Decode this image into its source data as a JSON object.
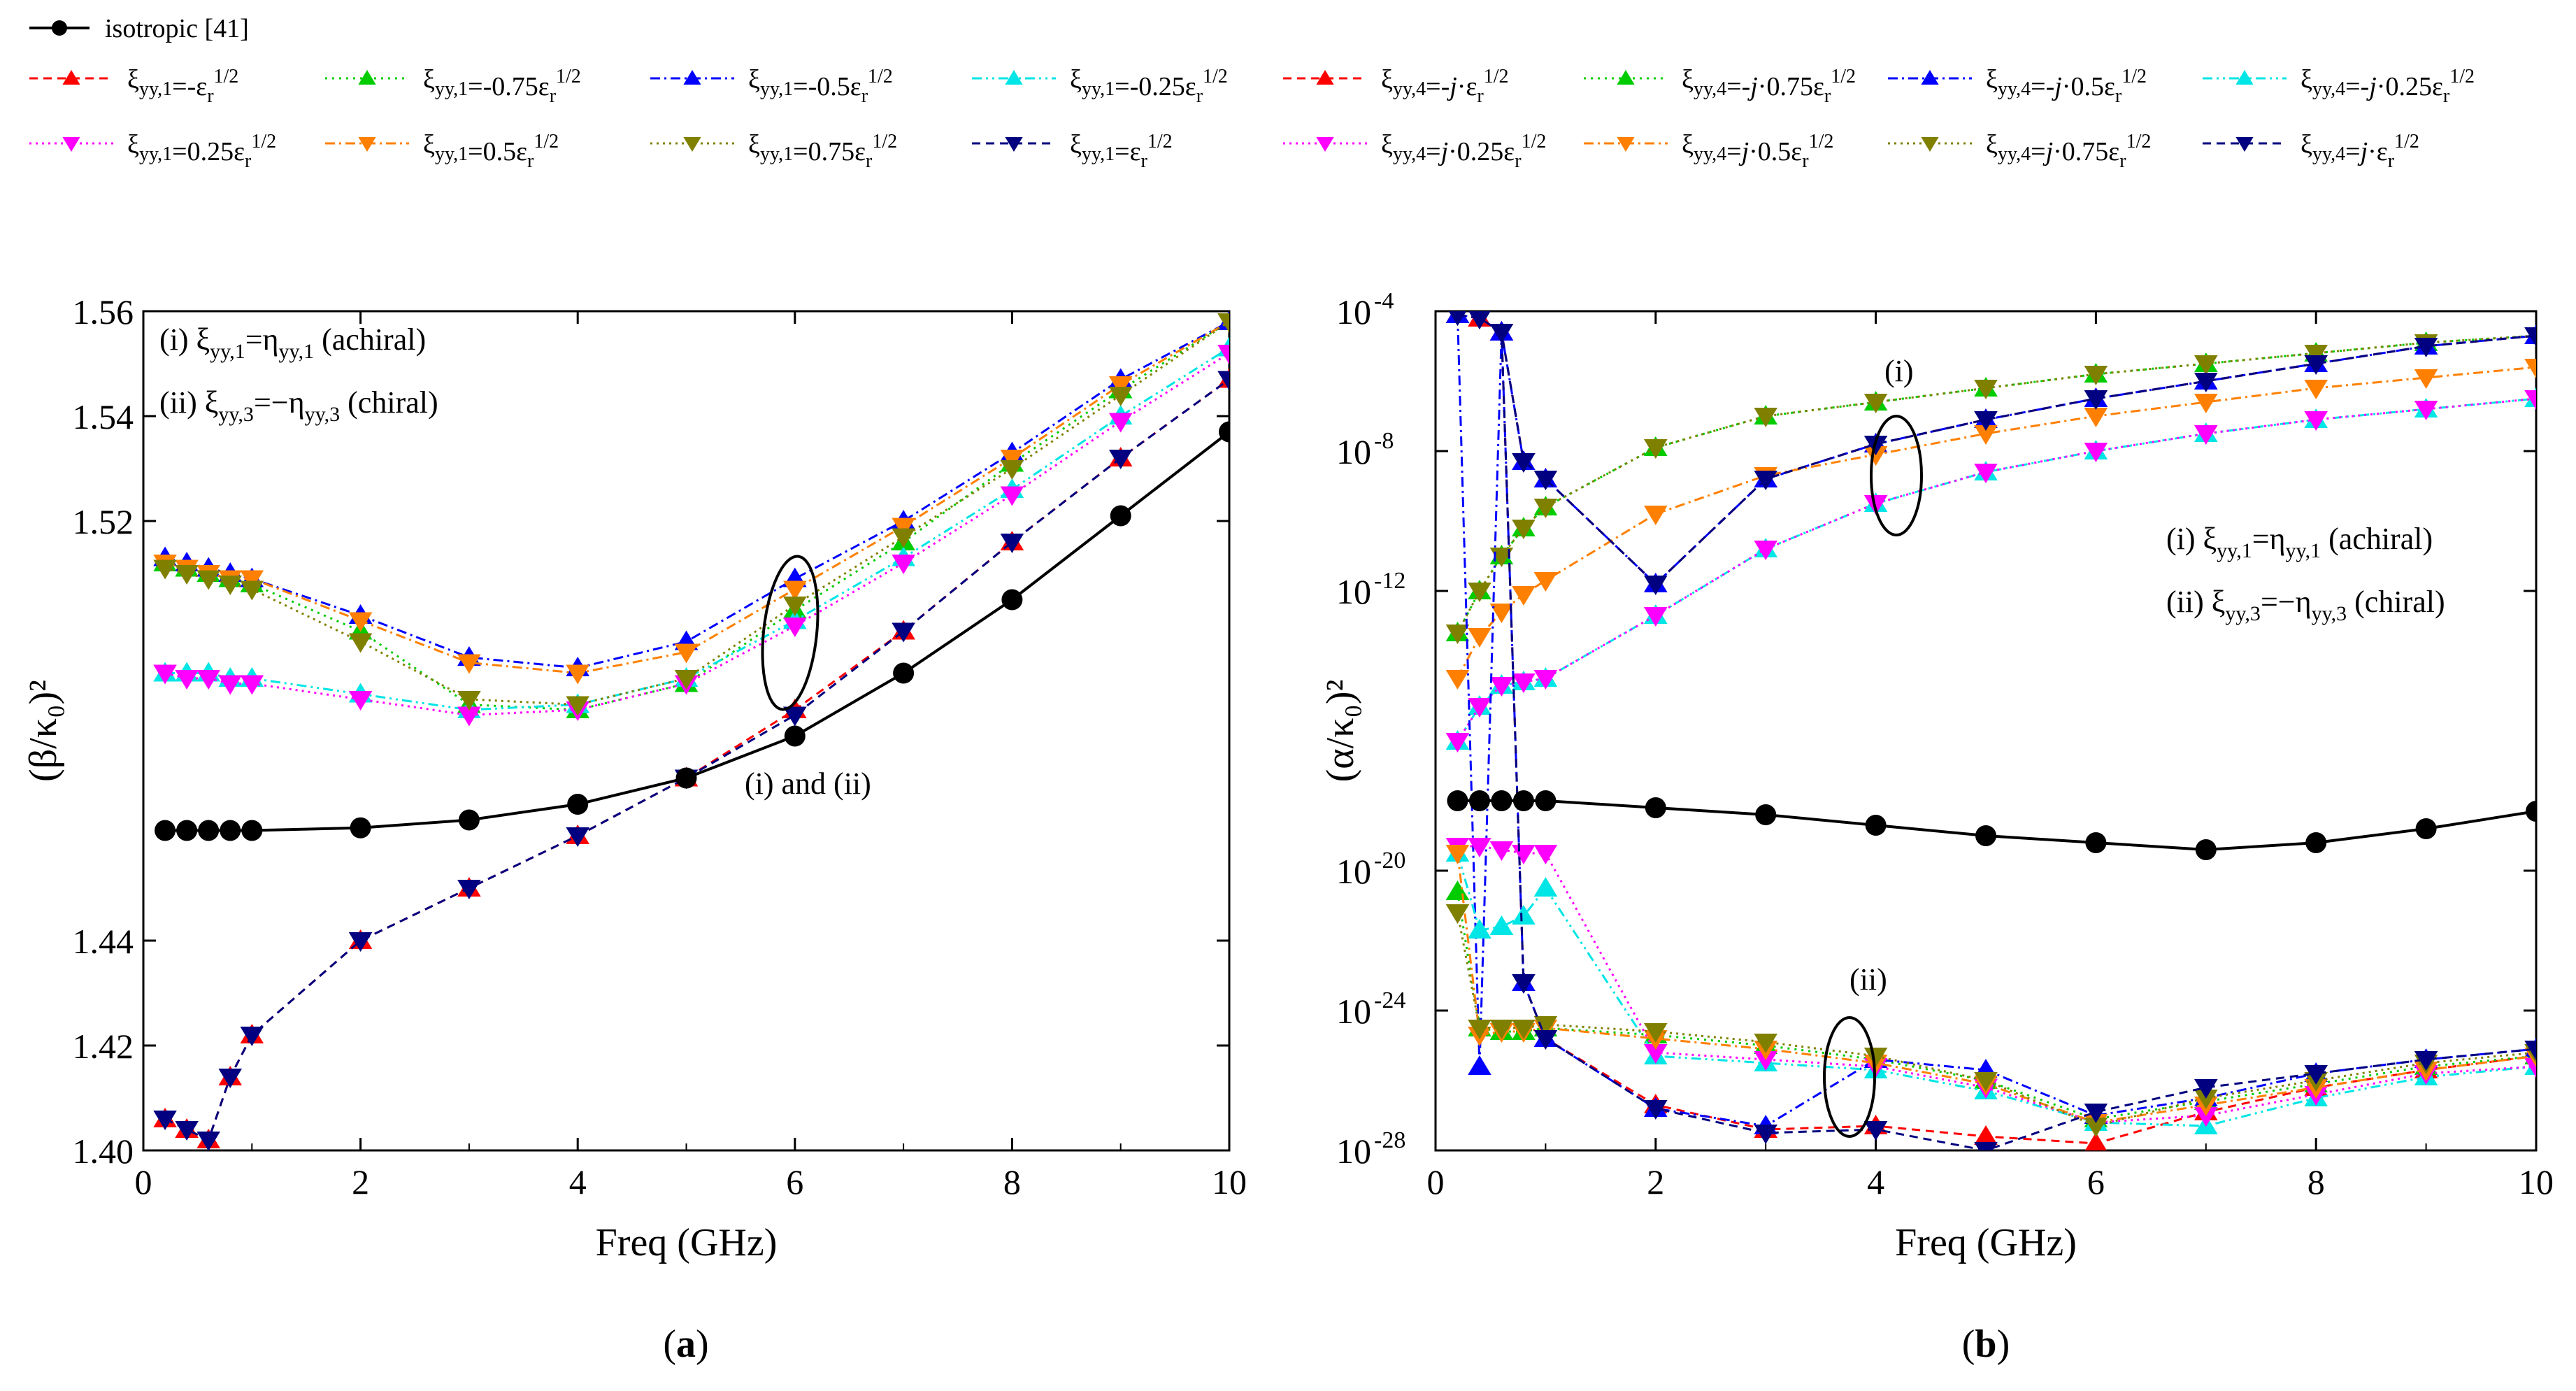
{
  "legend": {
    "isotropic": "isotropic [41]",
    "achiral_group": [
      {
        "prefix": "ξ",
        "sub": "yy,1",
        "eq": "=-ε",
        "sub2": "r",
        "sup": "1/2",
        "color": "#ff0000",
        "marker": "up",
        "dash": "12,8"
      },
      {
        "prefix": "ξ",
        "sub": "yy,1",
        "eq": "=-0.75ε",
        "sub2": "r",
        "sup": "1/2",
        "color": "#00cc00",
        "marker": "up",
        "dash": "3,7"
      },
      {
        "prefix": "ξ",
        "sub": "yy,1",
        "eq": "=-0.5ε",
        "sub2": "r",
        "sup": "1/2",
        "color": "#0000ff",
        "marker": "up",
        "dash": "14,6,3,6"
      },
      {
        "prefix": "ξ",
        "sub": "yy,1",
        "eq": "=-0.25ε",
        "sub2": "r",
        "sup": "1/2",
        "color": "#00e5e5",
        "marker": "up",
        "dash": "14,6,3,6,3,6"
      },
      {
        "prefix": "ξ",
        "sub": "yy,1",
        "eq": "=0.25ε",
        "sub2": "r",
        "sup": "1/2",
        "color": "#ff00ff",
        "marker": "down",
        "dash": "3,6"
      },
      {
        "prefix": "ξ",
        "sub": "yy,1",
        "eq": "=0.5ε",
        "sub2": "r",
        "sup": "1/2",
        "color": "#ff8000",
        "marker": "down",
        "dash": "14,6,3,6"
      },
      {
        "prefix": "ξ",
        "sub": "yy,1",
        "eq": "=0.75ε",
        "sub2": "r",
        "sup": "1/2",
        "color": "#808000",
        "marker": "down",
        "dash": "3,6"
      },
      {
        "prefix": "ξ",
        "sub": "yy,1",
        "eq": "=ε",
        "sub2": "r",
        "sup": "1/2",
        "color": "#000080",
        "marker": "down",
        "dash": "12,8"
      }
    ],
    "chiral_group": [
      {
        "prefix": "ξ",
        "sub": "yy,4",
        "eq": "=-j·ε",
        "sub2": "r",
        "sup": "1/2",
        "color": "#ff0000",
        "marker": "up",
        "dash": "12,8"
      },
      {
        "prefix": "ξ",
        "sub": "yy,4",
        "eq": "=-j·0.75ε",
        "sub2": "r",
        "sup": "1/2",
        "color": "#00cc00",
        "marker": "up",
        "dash": "3,7"
      },
      {
        "prefix": "ξ",
        "sub": "yy,4",
        "eq": "=-j·0.5ε",
        "sub2": "r",
        "sup": "1/2",
        "color": "#0000ff",
        "marker": "up",
        "dash": "14,6,3,6"
      },
      {
        "prefix": "ξ",
        "sub": "yy,4",
        "eq": "=-j·0.25ε",
        "sub2": "r",
        "sup": "1/2",
        "color": "#00e5e5",
        "marker": "up",
        "dash": "14,6,3,6,3,6"
      },
      {
        "prefix": "ξ",
        "sub": "yy,4",
        "eq": "=j·0.25ε",
        "sub2": "r",
        "sup": "1/2",
        "color": "#ff00ff",
        "marker": "down",
        "dash": "3,6"
      },
      {
        "prefix": "ξ",
        "sub": "yy,4",
        "eq": "=j·0.5ε",
        "sub2": "r",
        "sup": "1/2",
        "color": "#ff8000",
        "marker": "down",
        "dash": "14,6,3,6"
      },
      {
        "prefix": "ξ",
        "sub": "yy,4",
        "eq": "=j·0.75ε",
        "sub2": "r",
        "sup": "1/2",
        "color": "#808000",
        "marker": "down",
        "dash": "3,6"
      },
      {
        "prefix": "ξ",
        "sub": "yy,4",
        "eq": "=j·ε",
        "sub2": "r",
        "sup": "1/2",
        "color": "#000080",
        "marker": "down",
        "dash": "12,8"
      }
    ]
  },
  "chart_data": [
    {
      "type": "line",
      "panel_label": "(a)",
      "xlabel": "Freq (GHz)",
      "ylabel": "(β/κ₀)²",
      "xlim": [
        0,
        10
      ],
      "ylim": [
        1.4,
        1.56
      ],
      "yscale": "linear",
      "xticks": [
        0,
        2,
        4,
        6,
        8,
        10
      ],
      "yticks": [
        1.4,
        1.42,
        1.44,
        1.52,
        1.54,
        1.56
      ],
      "ytick_labels": [
        "1.40",
        "1.42",
        "1.44",
        "1.52",
        "1.54",
        "1.56"
      ],
      "annotations": [
        "(i) ξyy,1=ηyy,1 (achiral)",
        "(ii) ξyy,3=−ηyy,3 (chiral)",
        "(i) and (ii)"
      ],
      "x": [
        0.2,
        0.4,
        0.6,
        0.8,
        1,
        2,
        3,
        4,
        5,
        6,
        7,
        8,
        9,
        10
      ],
      "series": [
        {
          "name": "isotropic [41]",
          "color": "#000000",
          "marker": "circle",
          "dash": "",
          "values": [
            1.461,
            1.461,
            1.461,
            1.461,
            1.461,
            1.4615,
            1.463,
            1.466,
            1.471,
            1.479,
            1.491,
            1.505,
            1.521,
            1.537
          ]
        },
        {
          "name": "ξyy,1=-εr1/2",
          "color": "#ff0000",
          "marker": "up",
          "dash": "12,8",
          "values": [
            1.406,
            1.404,
            1.402,
            1.414,
            1.422,
            1.44,
            1.45,
            1.46,
            1.471,
            1.484,
            1.499,
            1.516,
            1.532,
            1.547
          ]
        },
        {
          "name": "ξyy,1=-0.75εr1/2",
          "color": "#00cc00",
          "marker": "up",
          "dash": "3,7",
          "values": [
            1.512,
            1.511,
            1.51,
            1.509,
            1.508,
            1.499,
            1.485,
            1.484,
            1.489,
            1.503,
            1.516,
            1.531,
            1.545,
            1.558
          ]
        },
        {
          "name": "ξyy,1=-0.5εr1/2",
          "color": "#0000ff",
          "marker": "up",
          "dash": "14,6,3,6",
          "values": [
            1.513,
            1.512,
            1.511,
            1.51,
            1.509,
            1.502,
            1.494,
            1.492,
            1.497,
            1.509,
            1.52,
            1.533,
            1.547,
            1.558
          ]
        },
        {
          "name": "ξyy,1=-0.25εr1/2",
          "color": "#00e5e5",
          "marker": "up",
          "dash": "14,6,3,6,3,6",
          "values": [
            1.491,
            1.491,
            1.491,
            1.49,
            1.49,
            1.487,
            1.484,
            1.485,
            1.49,
            1.501,
            1.513,
            1.526,
            1.54,
            1.553
          ]
        },
        {
          "name": "ξyy,1=0.25εr1/2",
          "color": "#ff00ff",
          "marker": "down",
          "dash": "3,6",
          "values": [
            1.491,
            1.49,
            1.49,
            1.489,
            1.489,
            1.486,
            1.483,
            1.484,
            1.489,
            1.5,
            1.512,
            1.525,
            1.539,
            1.552
          ]
        },
        {
          "name": "ξyy,1=0.5εr1/2",
          "color": "#ff8000",
          "marker": "down",
          "dash": "14,6,3,6",
          "values": [
            1.512,
            1.511,
            1.51,
            1.509,
            1.509,
            1.501,
            1.493,
            1.491,
            1.495,
            1.507,
            1.519,
            1.532,
            1.546,
            1.558
          ]
        },
        {
          "name": "ξyy,1=0.75εr1/2",
          "color": "#808000",
          "marker": "down",
          "dash": "3,6",
          "values": [
            1.511,
            1.51,
            1.509,
            1.508,
            1.507,
            1.497,
            1.486,
            1.485,
            1.49,
            1.504,
            1.517,
            1.53,
            1.544,
            1.558
          ]
        },
        {
          "name": "ξyy,1=εr1/2",
          "color": "#000080",
          "marker": "down",
          "dash": "12,8",
          "values": [
            1.406,
            1.404,
            1.402,
            1.414,
            1.422,
            1.44,
            1.45,
            1.46,
            1.471,
            1.483,
            1.499,
            1.516,
            1.532,
            1.547
          ]
        }
      ]
    },
    {
      "type": "line",
      "panel_label": "(b)",
      "xlabel": "Freq (GHz)",
      "ylabel": "(α/κ₀)²",
      "xlim": [
        0,
        10
      ],
      "ylim": [
        -28,
        -4
      ],
      "yscale": "log10",
      "xticks": [
        0,
        2,
        4,
        6,
        8,
        10
      ],
      "yticks": [
        -28,
        -24,
        -20,
        -12,
        -8,
        -4
      ],
      "ytick_labels": [
        {
          "base": "10",
          "exp": "-28"
        },
        {
          "base": "10",
          "exp": "-24"
        },
        {
          "base": "10",
          "exp": "-20"
        },
        {
          "base": "10",
          "exp": "-12"
        },
        {
          "base": "10",
          "exp": "-8"
        },
        {
          "base": "10",
          "exp": "-4"
        }
      ],
      "annotations": [
        "(i) ξyy,1=ηyy,1 (achiral)",
        "(ii) ξyy,3=−ηyy,3 (chiral)",
        "(i)",
        "(ii)"
      ],
      "x": [
        0.2,
        0.4,
        0.6,
        0.8,
        1,
        2,
        3,
        4,
        5,
        6,
        7,
        8,
        9,
        10
      ],
      "series_log10": [
        {
          "name": "isotropic [41]",
          "color": "#000000",
          "marker": "circle",
          "dash": "",
          "values": [
            -18.0,
            -18.0,
            -18.0,
            -18.0,
            -18.0,
            -18.2,
            -18.4,
            -18.7,
            -19.0,
            -19.2,
            -19.4,
            -19.2,
            -18.8,
            -18.3
          ]
        },
        {
          "name": "achiral ξyy,1=-εr1/2",
          "color": "#ff0000",
          "marker": "up",
          "dash": "12,8",
          "values": [
            -4.1,
            -4.2,
            -4.6,
            -8.3,
            -8.8,
            -11.8,
            -8.8,
            -7.8,
            -7.1,
            -6.5,
            -6.0,
            -5.5,
            -5.0,
            -4.7
          ]
        },
        {
          "name": "achiral ξyy,1=-0.75εr1/2",
          "color": "#00cc00",
          "marker": "up",
          "dash": "3,7",
          "values": [
            -13.2,
            -12.0,
            -11.0,
            -10.2,
            -9.6,
            -7.9,
            -7.0,
            -6.6,
            -6.2,
            -5.8,
            -5.5,
            -5.2,
            -4.9,
            -4.7
          ]
        },
        {
          "name": "achiral ξyy,1=-0.5εr1/2",
          "color": "#0000ff",
          "marker": "up",
          "dash": "14,6,3,6",
          "values": [
            -4.1,
            -4.2,
            -4.6,
            -8.3,
            -8.8,
            -11.8,
            -8.8,
            -7.8,
            -7.1,
            -6.5,
            -6.0,
            -5.5,
            -5.0,
            -4.7
          ]
        },
        {
          "name": "achiral ξyy,1=-0.25εr1/2",
          "color": "#00e5e5",
          "marker": "up",
          "dash": "14,6,3,6,3,6",
          "values": [
            -16.3,
            -15.3,
            -14.7,
            -14.6,
            -14.5,
            -12.7,
            -10.8,
            -9.5,
            -8.6,
            -8.0,
            -7.5,
            -7.1,
            -6.8,
            -6.5
          ]
        },
        {
          "name": "achiral ξyy,1=0.25εr1/2",
          "color": "#ff00ff",
          "marker": "down",
          "dash": "3,6",
          "values": [
            -16.3,
            -15.3,
            -14.7,
            -14.6,
            -14.5,
            -12.7,
            -10.8,
            -9.5,
            -8.6,
            -8.0,
            -7.5,
            -7.1,
            -6.8,
            -6.5
          ]
        },
        {
          "name": "achiral ξyy,1=0.5εr1/2",
          "color": "#ff8000",
          "marker": "down",
          "dash": "14,6,3,6",
          "values": [
            -14.5,
            -13.3,
            -12.6,
            -12.1,
            -11.7,
            -9.8,
            -8.7,
            -8.1,
            -7.5,
            -7.0,
            -6.6,
            -6.2,
            -5.9,
            -5.6
          ]
        },
        {
          "name": "achiral ξyy,1=0.75εr1/2",
          "color": "#808000",
          "marker": "down",
          "dash": "3,6",
          "values": [
            -13.2,
            -12.0,
            -11.0,
            -10.2,
            -9.6,
            -7.9,
            -7.0,
            -6.6,
            -6.2,
            -5.8,
            -5.5,
            -5.2,
            -4.9,
            -4.7
          ]
        },
        {
          "name": "achiral ξyy,1=εr1/2",
          "color": "#000080",
          "marker": "down",
          "dash": "12,8",
          "values": [
            -4.1,
            -4.2,
            -4.6,
            -8.3,
            -8.8,
            -11.8,
            -8.8,
            -7.8,
            -7.1,
            -6.5,
            -6.0,
            -5.5,
            -5.0,
            -4.7
          ]
        },
        {
          "name": "chiral ξyy,4=-j·εr1/2",
          "color": "#ff0000",
          "marker": "up",
          "dash": "12,8",
          "values": [
            -4.1,
            -4.2,
            -4.6,
            -23.2,
            -24.8,
            -26.7,
            -27.4,
            -27.3,
            -27.6,
            -27.8,
            -26.9,
            -26.2,
            -25.7,
            -25.3
          ]
        },
        {
          "name": "chiral ξyy,4=-j·0.75εr1/2",
          "color": "#00cc00",
          "marker": "up",
          "dash": "3,7",
          "values": [
            -20.6,
            -24.5,
            -24.6,
            -24.6,
            -24.5,
            -24.7,
            -25.0,
            -25.4,
            -26.0,
            -27.1,
            -26.6,
            -26.1,
            -25.6,
            -25.3
          ]
        },
        {
          "name": "chiral ξyy,4=-j·0.5εr1/2",
          "color": "#0000ff",
          "marker": "up",
          "dash": "14,6,3,6",
          "values": [
            -4.1,
            -25.6,
            -4.6,
            -23.2,
            -24.8,
            -26.8,
            -27.3,
            -25.4,
            -25.7,
            -27.0,
            -26.5,
            -25.8,
            -25.4,
            -25.1
          ]
        },
        {
          "name": "chiral ξyy,4=-j·0.25εr1/2",
          "color": "#00e5e5",
          "marker": "up",
          "dash": "14,6,3,6,3,6",
          "values": [
            -19.5,
            -21.7,
            -21.6,
            -21.3,
            -20.5,
            -25.3,
            -25.5,
            -25.7,
            -26.3,
            -27.2,
            -27.3,
            -26.5,
            -25.9,
            -25.6
          ]
        },
        {
          "name": "chiral ξyy,4=j·0.25εr1/2",
          "color": "#ff00ff",
          "marker": "down",
          "dash": "3,6",
          "values": [
            -19.3,
            -19.3,
            -19.4,
            -19.5,
            -19.5,
            -25.2,
            -25.4,
            -25.6,
            -26.2,
            -27.2,
            -27.0,
            -26.4,
            -25.8,
            -25.6
          ]
        },
        {
          "name": "chiral ξyy,4=j·0.5εr1/2",
          "color": "#ff8000",
          "marker": "down",
          "dash": "14,6,3,6",
          "values": [
            -19.5,
            -24.7,
            -24.6,
            -24.6,
            -24.5,
            -24.8,
            -25.1,
            -25.5,
            -26.1,
            -27.2,
            -26.7,
            -26.2,
            -25.7,
            -25.3
          ]
        },
        {
          "name": "chiral ξyy,4=j·0.75εr1/2",
          "color": "#808000",
          "marker": "down",
          "dash": "3,6",
          "values": [
            -21.2,
            -24.5,
            -24.5,
            -24.5,
            -24.4,
            -24.6,
            -24.9,
            -25.3,
            -26.0,
            -27.3,
            -26.5,
            -26.0,
            -25.5,
            -25.2
          ]
        },
        {
          "name": "chiral ξyy,4=j·εr1/2",
          "color": "#000080",
          "marker": "down",
          "dash": "12,8",
          "values": [
            -4.1,
            -4.2,
            -4.6,
            -23.2,
            -24.8,
            -26.8,
            -27.5,
            -27.4,
            -28.0,
            -26.9,
            -26.2,
            -25.8,
            -25.4,
            -25.1
          ]
        }
      ]
    }
  ]
}
